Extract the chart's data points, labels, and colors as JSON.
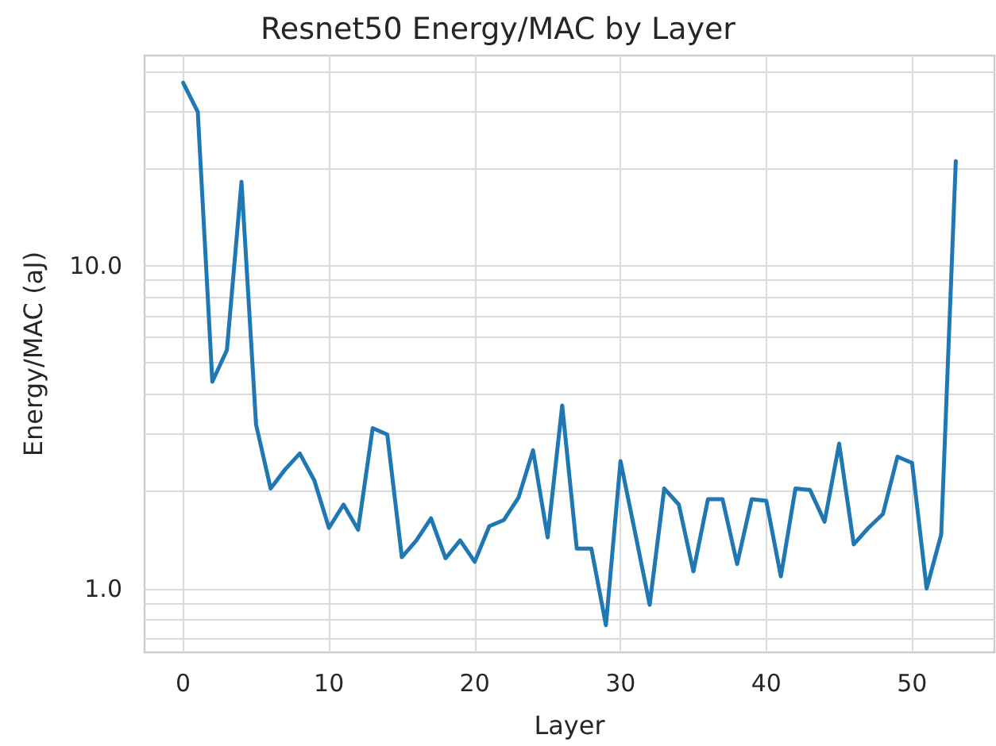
{
  "chart_data": {
    "type": "line",
    "title": "Resnet50 Energy/MAC by Layer",
    "xlabel": "Layer",
    "ylabel": "Energy/MAC (aJ)",
    "x": [
      0,
      1,
      2,
      3,
      4,
      5,
      6,
      7,
      8,
      9,
      10,
      11,
      12,
      13,
      14,
      15,
      16,
      17,
      18,
      19,
      20,
      21,
      22,
      23,
      24,
      25,
      26,
      27,
      28,
      29,
      30,
      31,
      32,
      33,
      34,
      35,
      36,
      37,
      38,
      39,
      40,
      41,
      42,
      43,
      44,
      45,
      46,
      47,
      48,
      49,
      50,
      51,
      52,
      53
    ],
    "series": [
      {
        "color": "#1f77b4",
        "values": [
          36.9,
          30.0,
          4.37,
          5.48,
          18.2,
          3.22,
          2.04,
          2.34,
          2.62,
          2.16,
          1.54,
          1.82,
          1.52,
          3.14,
          3.0,
          1.25,
          1.41,
          1.65,
          1.24,
          1.41,
          1.21,
          1.56,
          1.63,
          1.91,
          2.68,
          1.44,
          3.69,
          1.33,
          1.33,
          0.77,
          2.48,
          1.49,
          0.89,
          2.04,
          1.82,
          1.13,
          1.89,
          1.89,
          1.19,
          1.89,
          1.87,
          1.09,
          2.04,
          2.02,
          1.61,
          2.81,
          1.37,
          1.54,
          1.7,
          2.56,
          2.45,
          1.0,
          1.47,
          21.1
        ]
      }
    ],
    "xlim": [
      -2.65,
      55.65
    ],
    "xticks": [
      0,
      10,
      20,
      30,
      40,
      50
    ],
    "ylim": [
      0.634,
      44.8
    ],
    "yticks": [
      {
        "value": 0.7,
        "label": null
      },
      {
        "value": 0.8,
        "label": null
      },
      {
        "value": 0.9,
        "label": null
      },
      {
        "value": 1,
        "label": "1.0"
      },
      {
        "value": 2,
        "label": null
      },
      {
        "value": 3,
        "label": null
      },
      {
        "value": 4,
        "label": null
      },
      {
        "value": 5,
        "label": null
      },
      {
        "value": 6,
        "label": null
      },
      {
        "value": 7,
        "label": null
      },
      {
        "value": 8,
        "label": null
      },
      {
        "value": 9,
        "label": null
      },
      {
        "value": 10,
        "label": "10.0"
      },
      {
        "value": 20,
        "label": null
      },
      {
        "value": 30,
        "label": null
      },
      {
        "value": 40,
        "label": null
      }
    ],
    "log": "y",
    "grid": true,
    "marker": "none",
    "line_style": "solid"
  }
}
